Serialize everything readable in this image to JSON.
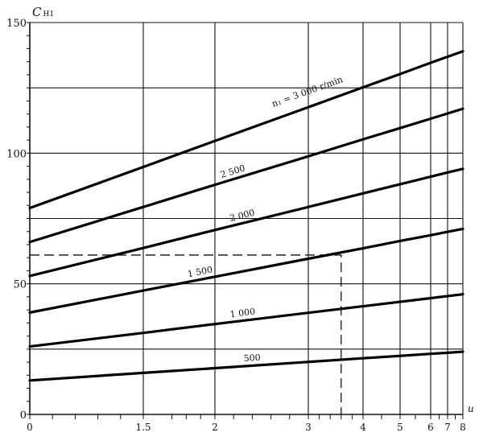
{
  "chart_data": {
    "type": "line",
    "ylabel": "C",
    "ylabel_sub": "H1",
    "xlabel": "u",
    "ylim": [
      0,
      150
    ],
    "yticks": [
      0,
      50,
      100,
      150
    ],
    "ygrid": [
      0,
      25,
      50,
      75,
      100,
      125,
      150
    ],
    "xticks": [
      0,
      1.5,
      2,
      3,
      4,
      5,
      6,
      7,
      8
    ],
    "xtick_labels": [
      "0",
      "1.5",
      "2",
      "3",
      "4",
      "5",
      "6",
      "7",
      "8"
    ],
    "x_scale": "nonlinear",
    "grid": true,
    "series": [
      {
        "name": "n₁ = 3 000 r/min",
        "x": [
          0,
          1.5,
          2,
          3,
          4,
          5,
          6,
          7,
          8
        ],
        "values": [
          79,
          94.7,
          104.7,
          117.6,
          125.2,
          130.3,
          134.6,
          136.9,
          139
        ]
      },
      {
        "name": "2 500",
        "x": [
          0,
          1.5,
          2,
          3,
          4,
          5,
          6,
          7,
          8
        ],
        "values": [
          66,
          79.4,
          87.9,
          98.8,
          105.3,
          109.6,
          113.2,
          115.2,
          117
        ]
      },
      {
        "name": "2 000",
        "x": [
          0,
          1.5,
          2,
          3,
          4,
          5,
          6,
          7,
          8
        ],
        "values": [
          53,
          63.7,
          70.6,
          79.4,
          84.6,
          88.1,
          91,
          92.6,
          94
        ]
      },
      {
        "name": "1 500",
        "x": [
          0,
          1.5,
          2,
          3,
          4,
          5,
          6,
          7,
          8
        ],
        "values": [
          39,
          47.4,
          52.7,
          59.6,
          63.6,
          66.4,
          68.6,
          69.9,
          71
        ]
      },
      {
        "name": "1 000",
        "x": [
          0,
          1.5,
          2,
          3,
          4,
          5,
          6,
          7,
          8
        ],
        "values": [
          26,
          31.2,
          34.6,
          38.9,
          41.4,
          43.1,
          44.5,
          45.3,
          46
        ]
      },
      {
        "name": "500",
        "x": [
          0,
          1.5,
          2,
          3,
          4,
          5,
          6,
          7,
          8
        ],
        "values": [
          13,
          15.9,
          17.7,
          20.1,
          21.5,
          22.4,
          23.2,
          23.6,
          24
        ]
      }
    ],
    "annotation": {
      "type": "dashed-reference",
      "u": 3.6,
      "value": 61
    }
  }
}
